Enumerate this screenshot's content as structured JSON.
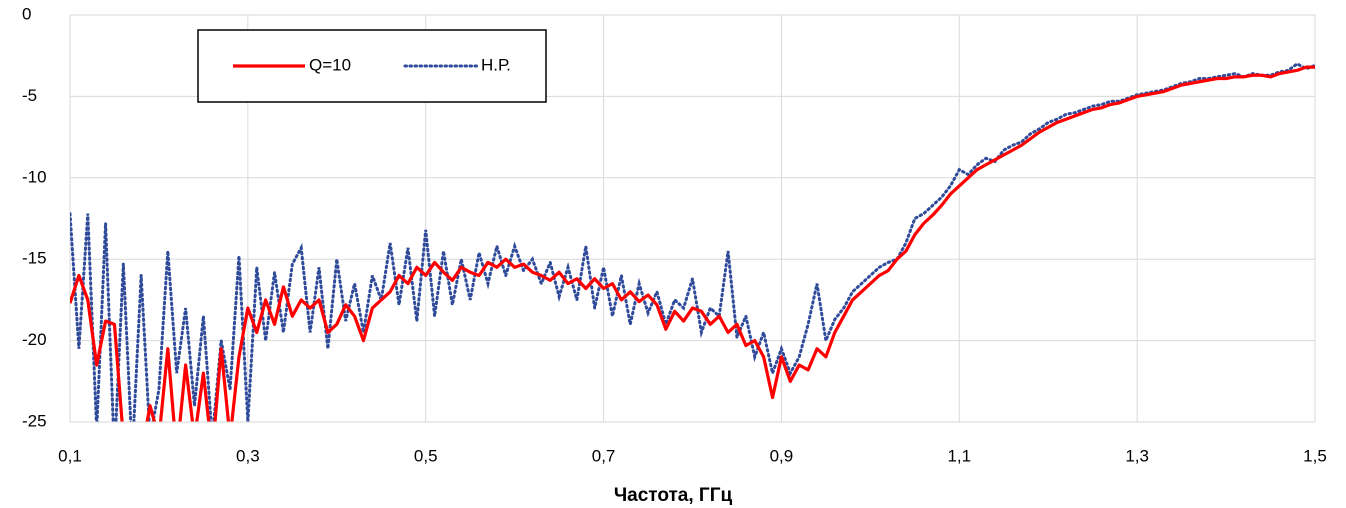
{
  "chart_data": {
    "type": "line",
    "xlabel": "Частота, ГГц",
    "x": [
      0.1,
      0.11,
      0.12,
      0.13,
      0.14,
      0.15,
      0.16,
      0.17,
      0.18,
      0.19,
      0.2,
      0.21,
      0.22,
      0.23,
      0.24,
      0.25,
      0.26,
      0.27,
      0.28,
      0.29,
      0.3,
      0.31,
      0.32,
      0.33,
      0.34,
      0.35,
      0.36,
      0.37,
      0.38,
      0.39,
      0.4,
      0.41,
      0.42,
      0.43,
      0.44,
      0.45,
      0.46,
      0.47,
      0.48,
      0.49,
      0.5,
      0.51,
      0.52,
      0.53,
      0.54,
      0.55,
      0.56,
      0.57,
      0.58,
      0.59,
      0.6,
      0.61,
      0.62,
      0.63,
      0.64,
      0.65,
      0.66,
      0.67,
      0.68,
      0.69,
      0.7,
      0.71,
      0.72,
      0.73,
      0.74,
      0.75,
      0.76,
      0.77,
      0.78,
      0.79,
      0.8,
      0.81,
      0.82,
      0.83,
      0.84,
      0.85,
      0.86,
      0.87,
      0.88,
      0.89,
      0.9,
      0.91,
      0.92,
      0.93,
      0.94,
      0.95,
      0.96,
      0.97,
      0.98,
      0.99,
      1.0,
      1.01,
      1.02,
      1.03,
      1.04,
      1.05,
      1.06,
      1.07,
      1.08,
      1.09,
      1.1,
      1.11,
      1.12,
      1.13,
      1.14,
      1.15,
      1.16,
      1.17,
      1.18,
      1.19,
      1.2,
      1.21,
      1.22,
      1.23,
      1.24,
      1.25,
      1.26,
      1.27,
      1.28,
      1.29,
      1.3,
      1.31,
      1.32,
      1.33,
      1.34,
      1.35,
      1.36,
      1.37,
      1.38,
      1.39,
      1.4,
      1.41,
      1.42,
      1.43,
      1.44,
      1.45,
      1.46,
      1.47,
      1.48,
      1.49,
      1.5
    ],
    "series": [
      {
        "name": "Q=10",
        "color": "#ff0000",
        "style": "solid",
        "values": [
          -17.7,
          -16.0,
          -17.5,
          -21.5,
          -18.8,
          -19.0,
          -26,
          -25.5,
          -27,
          -24,
          -26,
          -20.5,
          -27,
          -21.5,
          -26,
          -22,
          -27,
          -20.5,
          -26,
          -21,
          -18,
          -19.5,
          -17.5,
          -19,
          -16.7,
          -18.5,
          -17.5,
          -18.0,
          -17.5,
          -19.5,
          -19,
          -17.8,
          -18.5,
          -20,
          -18,
          -17.5,
          -17,
          -16,
          -16.5,
          -15.5,
          -16,
          -15.2,
          -15.8,
          -16.3,
          -15.5,
          -15.8,
          -16,
          -15.2,
          -15.5,
          -15,
          -15.5,
          -15.3,
          -15.8,
          -16,
          -16.3,
          -15.8,
          -16.5,
          -16.2,
          -16.8,
          -16.2,
          -16.8,
          -16.5,
          -17.5,
          -17,
          -17.6,
          -17.2,
          -17.8,
          -19.3,
          -18.2,
          -18.8,
          -18,
          -18.2,
          -19,
          -18.5,
          -19.5,
          -19,
          -20.3,
          -20,
          -21,
          -23.5,
          -21,
          -22.5,
          -21.5,
          -21.8,
          -20.5,
          -21,
          -19.5,
          -18.5,
          -17.5,
          -17,
          -16.5,
          -16,
          -15.7,
          -15,
          -14.5,
          -13.5,
          -12.8,
          -12.3,
          -11.7,
          -11,
          -10.5,
          -10,
          -9.5,
          -9.2,
          -8.9,
          -8.6,
          -8.3,
          -8.0,
          -7.6,
          -7.2,
          -6.9,
          -6.6,
          -6.4,
          -6.2,
          -6.0,
          -5.8,
          -5.7,
          -5.5,
          -5.4,
          -5.2,
          -5.0,
          -4.9,
          -4.8,
          -4.7,
          -4.5,
          -4.3,
          -4.2,
          -4.1,
          -4.0,
          -3.9,
          -3.9,
          -3.8,
          -3.8,
          -3.7,
          -3.7,
          -3.8,
          -3.6,
          -3.5,
          -3.4,
          -3.2,
          -3.2
        ]
      },
      {
        "name": "Н.Р.",
        "color": "#2f4b9a",
        "style": "dotted",
        "values": [
          -12.2,
          -20.5,
          -12.2,
          -25.5,
          -12.8,
          -27,
          -15.3,
          -27,
          -16,
          -26,
          -23,
          -14.5,
          -22,
          -18,
          -24,
          -18.5,
          -26,
          -20,
          -23,
          -14.8,
          -25,
          -15.5,
          -20,
          -15.8,
          -19.5,
          -15.3,
          -14.3,
          -19.5,
          -15.5,
          -20.5,
          -15,
          -18.8,
          -16.5,
          -19.5,
          -16,
          -17.5,
          -14,
          -17.8,
          -14.3,
          -18.8,
          -13.2,
          -18.5,
          -14.5,
          -17.8,
          -15,
          -17.5,
          -14.6,
          -16.5,
          -14.2,
          -16,
          -14.2,
          -15.7,
          -15,
          -16.5,
          -15.2,
          -17.3,
          -15.5,
          -17.5,
          -14.2,
          -18,
          -15.5,
          -18.5,
          -16,
          -19,
          -16.5,
          -18.3,
          -17,
          -19,
          -17.5,
          -18,
          -16.2,
          -19.5,
          -18,
          -18.5,
          -14.5,
          -19.8,
          -18.5,
          -21,
          -19.5,
          -22,
          -20.5,
          -22,
          -21,
          -19,
          -16.5,
          -20,
          -18.7,
          -18,
          -17,
          -16.5,
          -16,
          -15.5,
          -15.2,
          -15,
          -14,
          -12.5,
          -12.2,
          -11.7,
          -11.2,
          -10.5,
          -9.5,
          -9.8,
          -9.2,
          -8.8,
          -9,
          -8.3,
          -8,
          -7.8,
          -7.3,
          -7,
          -6.6,
          -6.4,
          -6.1,
          -6.0,
          -5.8,
          -5.6,
          -5.5,
          -5.3,
          -5.3,
          -5.1,
          -4.9,
          -4.8,
          -4.7,
          -4.6,
          -4.4,
          -4.2,
          -4.1,
          -3.9,
          -3.9,
          -3.8,
          -3.7,
          -3.6,
          -3.8,
          -3.6,
          -3.7,
          -3.7,
          -3.5,
          -3.4,
          -3.0,
          -3.3,
          -3.1
        ]
      }
    ],
    "xlim": [
      0.1,
      1.5
    ],
    "xticks": [
      {
        "value": 0.1,
        "label": "0,1"
      },
      {
        "value": 0.3,
        "label": "0,3"
      },
      {
        "value": 0.5,
        "label": "0,5"
      },
      {
        "value": 0.7,
        "label": "0,7"
      },
      {
        "value": 0.9,
        "label": "0,9"
      },
      {
        "value": 1.1,
        "label": "1,1"
      },
      {
        "value": 1.3,
        "label": "1,3"
      },
      {
        "value": 1.5,
        "label": "1,5"
      }
    ],
    "ylim": [
      -25,
      0
    ],
    "yticks": [
      0,
      -5,
      -10,
      -15,
      -20,
      -25
    ],
    "grid": true,
    "legend": "upper left"
  }
}
